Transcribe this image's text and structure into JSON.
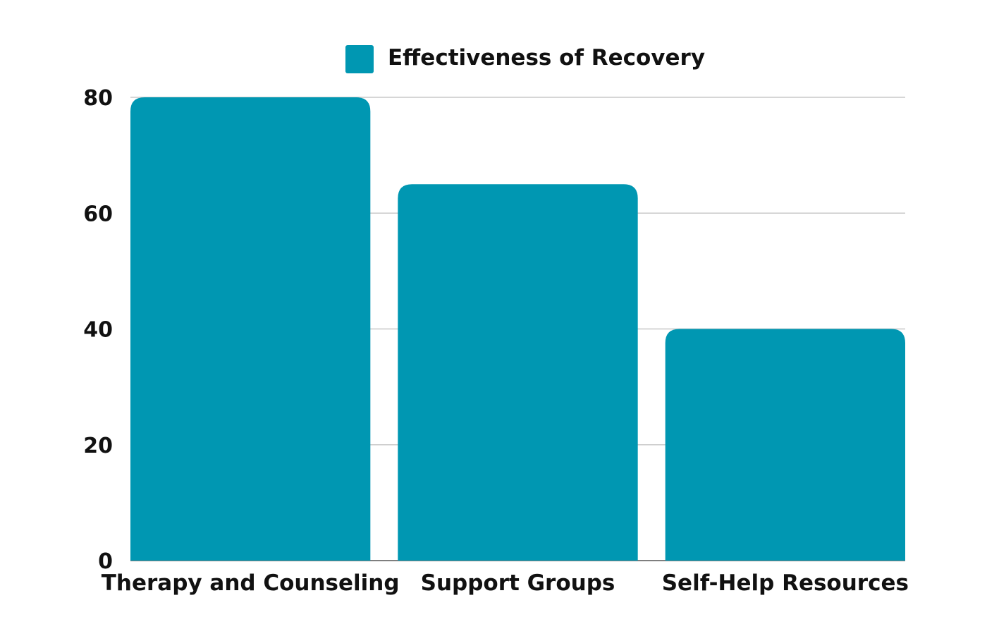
{
  "chart_data": {
    "type": "bar",
    "title": "",
    "xlabel": "",
    "ylabel": "",
    "categories": [
      "Therapy and Counseling",
      "Support Groups",
      "Self-Help Resources"
    ],
    "series": [
      {
        "name": "Effectiveness of Recovery",
        "values": [
          80,
          65,
          40
        ],
        "color": "#0097b2"
      }
    ],
    "ylim": [
      0,
      80
    ],
    "yticks": [
      0,
      20,
      40,
      60,
      80
    ],
    "grid": true,
    "legend": "top-center",
    "colors": {
      "bar": "#0097b2",
      "grid": "#c8c8c8",
      "axis": "#555555",
      "text": "#111111"
    }
  }
}
